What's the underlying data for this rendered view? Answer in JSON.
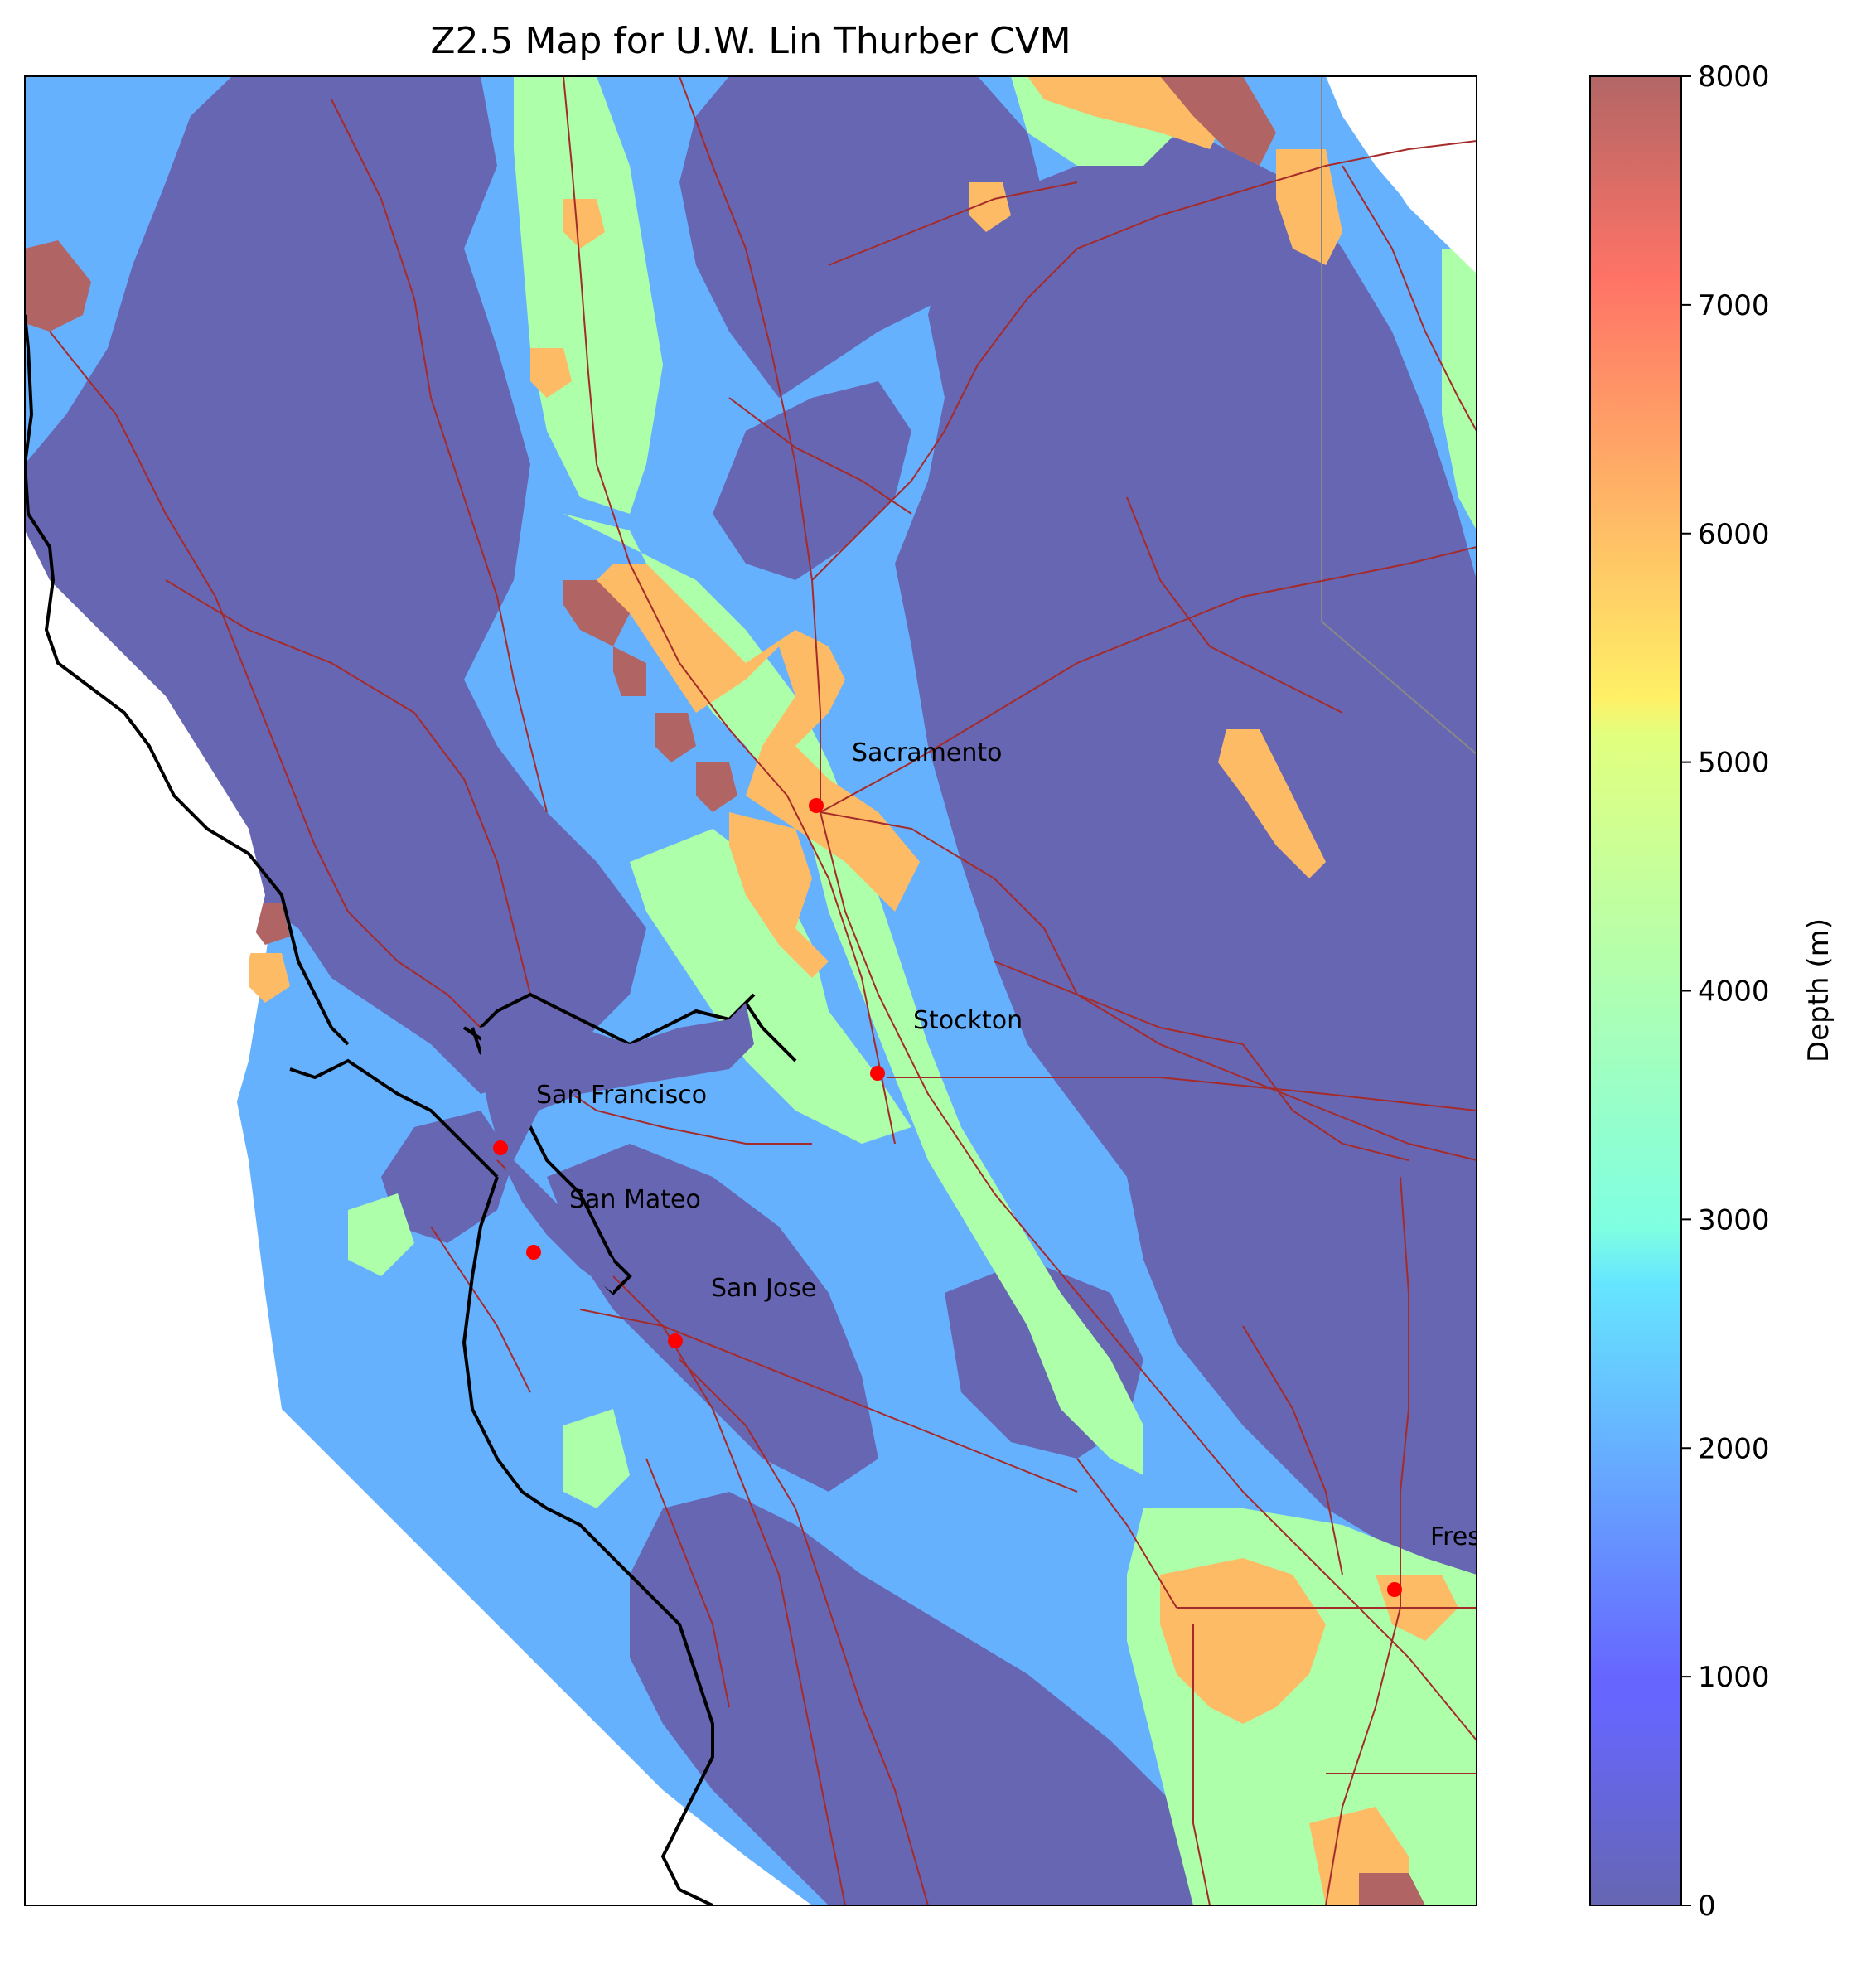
{
  "title": "Z2.5 Map for U.W. Lin Thurber CVM",
  "colorbar": {
    "label": "Depth (m)",
    "min": 0,
    "max": 8000,
    "ticks": [
      "0",
      "1000",
      "2000",
      "3000",
      "4000",
      "5000",
      "6000",
      "7000",
      "8000"
    ],
    "colormap": "jet",
    "alpha": 0.6
  },
  "cities": [
    {
      "name": "Sacramento"
    },
    {
      "name": "Stockton"
    },
    {
      "name": "San Francisco"
    },
    {
      "name": "San Mateo"
    },
    {
      "name": "San Jose"
    },
    {
      "name": "Fresno"
    }
  ],
  "legend_colors": {
    "low": "#6766b2",
    "mid_low": "#66b1fe",
    "mid": "#aeffa9",
    "mid_high": "#fdbb66",
    "high": "#b06564",
    "roads": "#a52a2a",
    "coast": "#000000",
    "city_marker": "#ff0000"
  }
}
